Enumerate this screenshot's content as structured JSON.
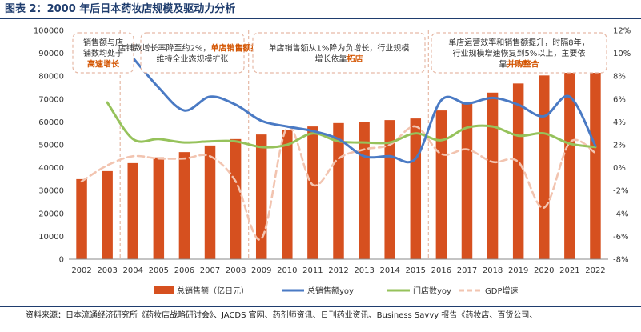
{
  "figure": {
    "title": "图表 2：2000 年后日本药妆店规模及驱动力分析",
    "source_note": "资料来源：日本流通经济研究所《药妆店战略研讨会》、JACDS 官网、药剂师资讯、日刊药业资讯、Business Savvy 报告《药妆店、百货公司、"
  },
  "chart_data": {
    "type": "bar",
    "categories": [
      "2002",
      "2003",
      "2004",
      "2005",
      "2006",
      "2007",
      "2008",
      "2009",
      "2010",
      "2011",
      "2012",
      "2013",
      "2014",
      "2015",
      "2016",
      "2017",
      "2018",
      "2019",
      "2020",
      "2021",
      "2022"
    ],
    "left_axis": {
      "min": 0,
      "max": 100000,
      "step": 10000,
      "ticks": [
        "0",
        "10000",
        "20000",
        "30000",
        "40000",
        "50000",
        "60000",
        "70000",
        "80000",
        "90000",
        "100000"
      ]
    },
    "right_axis": {
      "min": -8,
      "max": 12,
      "step": 2,
      "ticks": [
        "-8%",
        "-6%",
        "-4%",
        "-2%",
        "0%",
        "2%",
        "4%",
        "6%",
        "8%",
        "10%",
        "12%"
      ]
    },
    "series": [
      {
        "name": "总销售额（亿日元）",
        "type": "bar",
        "axis": "left",
        "color": "#d6501f",
        "values": [
          35000,
          38500,
          42000,
          44500,
          46800,
          49700,
          52500,
          54500,
          56500,
          58000,
          59500,
          60000,
          60800,
          61500,
          65000,
          68000,
          72800,
          76800,
          80300,
          85300,
          87000
        ]
      },
      {
        "name": "总销售额yoy",
        "type": "line",
        "axis": "right",
        "color": "#4a7ac4",
        "values": [
          null,
          null,
          9.6,
          7.0,
          5.0,
          6.2,
          5.5,
          4.1,
          3.6,
          3.2,
          2.5,
          1.0,
          1.0,
          0.8,
          5.9,
          5.6,
          6.1,
          5.5,
          4.5,
          6.2,
          1.9
        ]
      },
      {
        "name": "门店数yoy",
        "type": "line",
        "axis": "right",
        "color": "#96c25b",
        "values": [
          null,
          5.7,
          2.5,
          2.5,
          2.2,
          2.3,
          2.3,
          1.8,
          2.0,
          3.0,
          2.3,
          2.2,
          2.2,
          3.0,
          2.4,
          3.5,
          3.6,
          2.8,
          3.0,
          2.1,
          1.8
        ]
      },
      {
        "name": "GDP增速",
        "type": "line",
        "axis": "right",
        "color": "#f2c4b0",
        "dashed": true,
        "values": [
          -1.2,
          0.2,
          1.0,
          0.8,
          0.8,
          1.0,
          -1.2,
          -6.2,
          3.5,
          -1.5,
          0.8,
          1.6,
          2.0,
          3.6,
          1.2,
          1.6,
          0.5,
          0.5,
          -3.5,
          2.2,
          1.3
        ]
      }
    ],
    "annotations": [
      {
        "parts": [
          {
            "text": "销售额与店",
            "hl": false
          },
          {
            "text": "铺数均处于",
            "hl": false
          },
          {
            "text": "高速增长",
            "hl": true
          }
        ]
      },
      {
        "parts": [
          {
            "text": "店铺数增长率降至约",
            "hl": false
          },
          {
            "text": "2%，",
            "hl": false,
            "join": true
          },
          {
            "text": "单店销售额提升",
            "hl": true,
            "inline": true
          },
          {
            "text": "维持全业态规模扩张",
            "hl": false
          }
        ]
      },
      {
        "parts": [
          {
            "text": "单店销售额从1%降为负增长，行业规模",
            "hl": false
          },
          {
            "text": "增长依靠",
            "hl": false
          },
          {
            "text": "拓店",
            "hl": true,
            "inline": true
          }
        ]
      },
      {
        "parts": [
          {
            "text": "单店运营效率和销售额提升，时隔8年，",
            "hl": false
          },
          {
            "text": "行业规模增速恢复到5%以上，主要依",
            "hl": false
          },
          {
            "text": "靠",
            "hl": false
          },
          {
            "text": "并购整合",
            "hl": true,
            "inline": true
          }
        ]
      }
    ],
    "legend": [
      {
        "label": "总销售额（亿日元）",
        "kind": "bar",
        "color": "#d6501f"
      },
      {
        "label": "总销售额yoy",
        "kind": "line",
        "color": "#4a7ac4"
      },
      {
        "label": "门店数yoy",
        "kind": "line",
        "color": "#96c25b"
      },
      {
        "label": "GDP增速",
        "kind": "dash",
        "color": "#f2c4b0"
      }
    ]
  }
}
